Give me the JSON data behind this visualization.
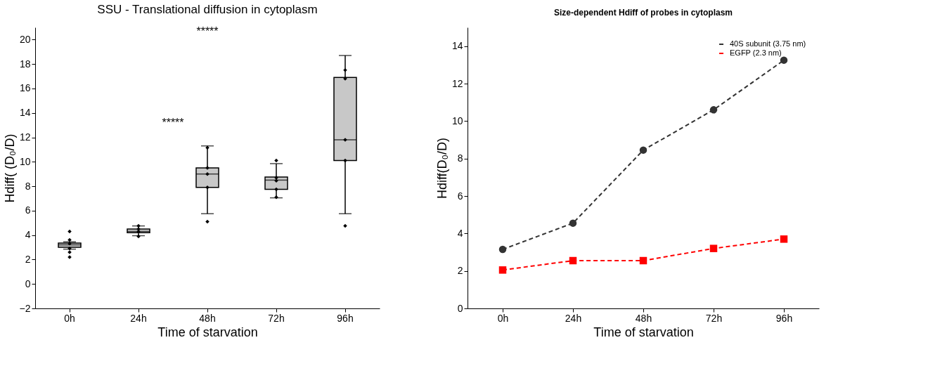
{
  "chart_data": [
    {
      "type": "box",
      "title": "SSU - Translational diffusion in cytoplasm",
      "xlabel": "Time of starvation",
      "ylabel": "Hdiff( (D₀/D)",
      "categories": [
        "0h",
        "24h",
        "48h",
        "72h",
        "96h"
      ],
      "ylim": [
        -2,
        21
      ],
      "yticks": [
        -2,
        0,
        2,
        4,
        6,
        8,
        10,
        12,
        14,
        16,
        18,
        20
      ],
      "grid": false,
      "legend": false,
      "annotations": [
        "*****",
        "*****"
      ],
      "series": [
        {
          "type": "box",
          "color": "#c8c8c8",
          "boxes": [
            {
              "low": 2.85,
              "q1": 3.0,
              "median": 3.2,
              "q3": 3.35,
              "high": 3.45
            },
            {
              "low": 3.95,
              "q1": 4.2,
              "median": 4.3,
              "q3": 4.5,
              "high": 4.75
            },
            {
              "low": 5.75,
              "q1": 7.9,
              "median": 9.0,
              "q3": 9.5,
              "high": 11.3
            },
            {
              "low": 7.05,
              "q1": 7.75,
              "median": 8.5,
              "q3": 8.75,
              "high": 9.85
            },
            {
              "low": 5.75,
              "q1": 10.1,
              "median": 11.8,
              "q3": 16.9,
              "high": 18.7
            }
          ]
        },
        {
          "type": "scatter",
          "color": "#000000",
          "marker": "diamond",
          "x": [
            "0h",
            "0h",
            "0h",
            "0h",
            "0h",
            "0h",
            "24h",
            "24h",
            "24h",
            "24h",
            "48h",
            "48h",
            "48h",
            "48h",
            "48h",
            "72h",
            "72h",
            "72h",
            "72h",
            "72h",
            "96h",
            "96h",
            "96h",
            "96h",
            "96h"
          ],
          "values": [
            4.3,
            3.6,
            3.3,
            2.9,
            2.6,
            2.2,
            4.75,
            4.5,
            4.3,
            3.9,
            11.15,
            9.5,
            9.0,
            7.9,
            5.1,
            10.1,
            8.7,
            8.45,
            7.75,
            7.1,
            17.5,
            16.8,
            11.8,
            10.1,
            4.75
          ]
        }
      ]
    },
    {
      "type": "line",
      "title": "Size-dependent Hdiff of probes in cytoplasm",
      "xlabel": "Time of starvation",
      "ylabel": "Hdiff(D₀/D)",
      "categories": [
        "0h",
        "24h",
        "48h",
        "72h",
        "96h"
      ],
      "ylim": [
        0,
        15
      ],
      "yticks": [
        0,
        2,
        4,
        6,
        8,
        10,
        12,
        14
      ],
      "grid": false,
      "legend": "top right",
      "line_style": "dashed",
      "series": [
        {
          "name": "40S subunit (3.75 nm)",
          "color": "#333333",
          "marker": "circle",
          "values": [
            3.15,
            4.55,
            8.45,
            10.6,
            13.25
          ]
        },
        {
          "name": "EGFP (2.3 nm)",
          "color": "#ff0000",
          "marker": "square",
          "values": [
            2.05,
            2.55,
            2.55,
            3.2,
            3.7
          ]
        }
      ]
    }
  ]
}
